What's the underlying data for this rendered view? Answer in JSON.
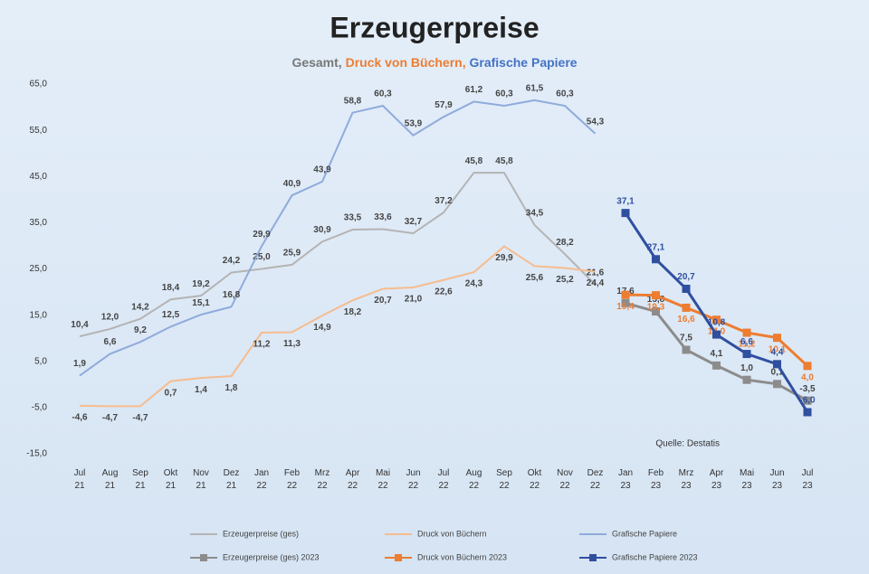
{
  "chart_data": {
    "type": "line",
    "title": "Erzeugerpreise",
    "subtitle_parts": [
      "Gesamt, ",
      "Druck von Büchern, ",
      "Grafische Papiere"
    ],
    "source": "Quelle: Destatis",
    "grid": false,
    "categories": [
      "Jul 21",
      "Aug 21",
      "Sep 21",
      "Okt 21",
      "Nov 21",
      "Dez 21",
      "Jan 22",
      "Feb 22",
      "Mrz 22",
      "Apr 22",
      "Mai 22",
      "Jun 22",
      "Jul 22",
      "Aug 22",
      "Sep 22",
      "Okt 22",
      "Nov 22",
      "Dez 22",
      "Jan 23",
      "Feb 23",
      "Mrz 23",
      "Apr 23",
      "Mai 23",
      "Jun 23",
      "Jul 23"
    ],
    "ylim": [
      -15,
      65
    ],
    "yticks": [
      {
        "value": 65,
        "label": "65,0"
      },
      {
        "value": 55,
        "label": "55,0"
      },
      {
        "value": 45,
        "label": "45,0"
      },
      {
        "value": 35,
        "label": "35,0"
      },
      {
        "value": 25,
        "label": "25,0"
      },
      {
        "value": 15,
        "label": "15,0"
      },
      {
        "value": 5,
        "label": "5,0"
      },
      {
        "value": -5,
        "label": "-5,0"
      },
      {
        "value": -15,
        "label": "-15,0"
      }
    ],
    "series": [
      {
        "name": "Erzeugerpreise (ges)",
        "color": "#b4b4b4",
        "label_color": "#444",
        "marker": false,
        "values": [
          10.4,
          12.0,
          14.2,
          18.4,
          19.2,
          24.2,
          25.0,
          25.9,
          30.9,
          33.5,
          33.6,
          32.7,
          37.2,
          45.8,
          45.8,
          34.5,
          28.2,
          21.6,
          null,
          null,
          null,
          null,
          null,
          null,
          null
        ],
        "value_labels": [
          "10,4",
          "12,0",
          "14,2",
          "18,4",
          "19,2",
          "24,2",
          "25,0",
          "25,9",
          "30,9",
          "33,5",
          "33,6",
          "32,7",
          "37,2",
          "45,8",
          "45,8",
          "34,5",
          "28,2",
          "21,6",
          null,
          null,
          null,
          null,
          null,
          null,
          null
        ]
      },
      {
        "name": "Druck von Büchern",
        "color": "#f6bc8e",
        "label_color": "#444",
        "marker": false,
        "values": [
          -4.6,
          -4.7,
          -4.7,
          0.7,
          1.4,
          1.8,
          11.2,
          11.3,
          14.9,
          18.2,
          20.7,
          21.0,
          22.6,
          24.3,
          29.9,
          25.6,
          25.2,
          24.4,
          null,
          null,
          null,
          null,
          null,
          null,
          null
        ],
        "value_labels": [
          "-4,6",
          "-4,7",
          "-4,7",
          "0,7",
          "1,4",
          "1,8",
          "11,2",
          "11,3",
          "14,9",
          "18,2",
          "20,7",
          "21,0",
          "22,6",
          "24,3",
          "29,9",
          "25,6",
          "25,2",
          "24,4",
          null,
          null,
          null,
          null,
          null,
          null,
          null
        ]
      },
      {
        "name": "Grafische Papiere",
        "color": "#8fabdc",
        "label_color": "#444",
        "marker": false,
        "values": [
          1.9,
          6.6,
          9.2,
          12.5,
          15.1,
          16.8,
          29.9,
          40.9,
          43.9,
          58.8,
          60.3,
          53.9,
          57.9,
          61.2,
          60.3,
          61.5,
          60.3,
          54.3,
          null,
          null,
          null,
          null,
          null,
          null,
          null
        ],
        "value_labels": [
          "1,9",
          "6,6",
          "9,2",
          "12,5",
          "15,1",
          "16,8",
          "29,9",
          "40,9",
          "43,9",
          "58,8",
          "60,3",
          "53,9",
          "57,9",
          "61,2",
          "60,3",
          "61,5",
          "60,3",
          "54,3",
          null,
          null,
          null,
          null,
          null,
          null,
          null
        ]
      },
      {
        "name": "Erzeugerpreise (ges) 2023",
        "color": "#8c8c8c",
        "label_color": "#444",
        "marker": true,
        "values": [
          null,
          null,
          null,
          null,
          null,
          null,
          null,
          null,
          null,
          null,
          null,
          null,
          null,
          null,
          null,
          null,
          null,
          null,
          17.6,
          15.8,
          7.5,
          4.1,
          1.0,
          0.1,
          -3.5
        ],
        "value_labels": [
          null,
          null,
          null,
          null,
          null,
          null,
          null,
          null,
          null,
          null,
          null,
          null,
          null,
          null,
          null,
          null,
          null,
          null,
          "17,6",
          "15,8",
          "7,5",
          "4,1",
          "1,0",
          "0,1",
          "-3,5"
        ]
      },
      {
        "name": "Druck von Büchern 2023",
        "color": "#ed7d31",
        "label_color": "#ed7d31",
        "marker": true,
        "values": [
          null,
          null,
          null,
          null,
          null,
          null,
          null,
          null,
          null,
          null,
          null,
          null,
          null,
          null,
          null,
          null,
          null,
          null,
          19.4,
          19.3,
          16.6,
          14.0,
          11.2,
          10.1,
          4.0
        ],
        "value_labels": [
          null,
          null,
          null,
          null,
          null,
          null,
          null,
          null,
          null,
          null,
          null,
          null,
          null,
          null,
          null,
          null,
          null,
          null,
          "19,4",
          "19,3",
          "16,6",
          "14,0",
          "11,2",
          "10,1",
          "4,0"
        ]
      },
      {
        "name": "Grafische Papiere 2023",
        "color": "#2f4f9f",
        "label_color": "#2f4f9f",
        "marker": true,
        "values": [
          null,
          null,
          null,
          null,
          null,
          null,
          null,
          null,
          null,
          null,
          null,
          null,
          null,
          null,
          null,
          null,
          null,
          null,
          37.1,
          27.1,
          20.7,
          10.8,
          6.6,
          4.4,
          -6.0
        ],
        "value_labels": [
          null,
          null,
          null,
          null,
          null,
          null,
          null,
          null,
          null,
          null,
          null,
          null,
          null,
          null,
          null,
          null,
          null,
          null,
          "37,1",
          "27,1",
          "20,7",
          "10,8",
          "6,6",
          "4,4",
          "-6,0"
        ]
      }
    ]
  }
}
